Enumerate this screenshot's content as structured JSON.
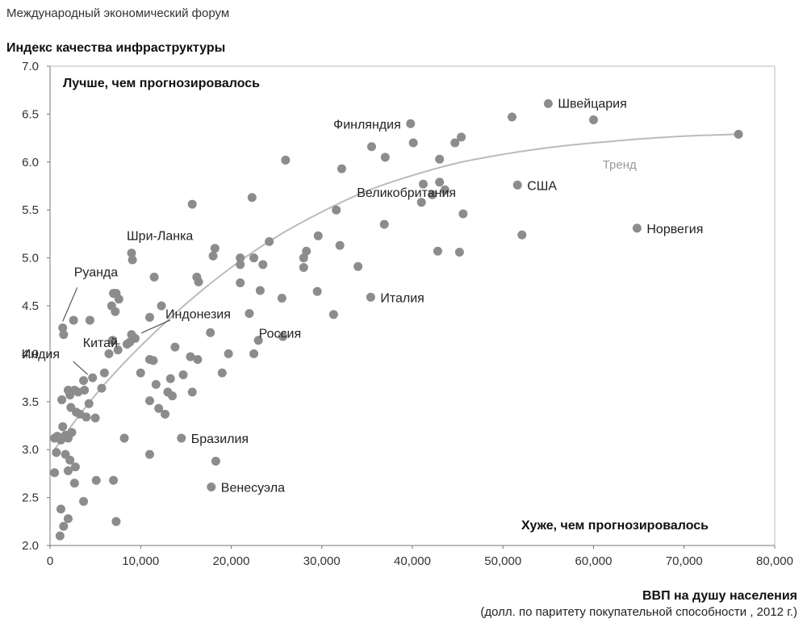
{
  "header": {
    "source": "Международный экономический форум",
    "ylabel": "Индекс качества инфраструктуры",
    "xlabel": "ВВП на душу населения",
    "xsub": "(долл. по паритету покупательной способности , 2012 г.)"
  },
  "chart_data": {
    "type": "scatter",
    "xlim": [
      0,
      80000
    ],
    "ylim": [
      2.0,
      7.0
    ],
    "x_ticks": [
      "0",
      "10,000",
      "20,000",
      "30,000",
      "40,000",
      "50,000",
      "60,000",
      "70,000",
      "80,000"
    ],
    "y_ticks": [
      "2.0",
      "2.5",
      "3.0",
      "3.5",
      "4.0",
      "4.5",
      "5.0",
      "5.5",
      "6.0",
      "6.5",
      "7.0"
    ],
    "grid": false,
    "point_color": "#8c8c8c",
    "trend_color": "#bbbbbb",
    "annotations": {
      "top_left": "Лучше, чем прогнозировалось",
      "bottom_right": "Хуже, чем прогнозировалось",
      "trend": "Тренд"
    },
    "trend": [
      [
        500,
        3.0
      ],
      [
        3000,
        3.33
      ],
      [
        6000,
        3.68
      ],
      [
        10000,
        4.08
      ],
      [
        15000,
        4.52
      ],
      [
        20000,
        4.9
      ],
      [
        25000,
        5.22
      ],
      [
        30000,
        5.48
      ],
      [
        35000,
        5.7
      ],
      [
        40000,
        5.86
      ],
      [
        45000,
        5.99
      ],
      [
        50000,
        6.08
      ],
      [
        55000,
        6.15
      ],
      [
        60000,
        6.2
      ],
      [
        65000,
        6.24
      ],
      [
        70000,
        6.27
      ],
      [
        76000,
        6.29
      ]
    ],
    "labeled_points": [
      {
        "name": "Швейцария",
        "x": 55000,
        "y": 6.61
      },
      {
        "name": "Финляндия",
        "x": 39800,
        "y": 6.4
      },
      {
        "name": "США",
        "x": 51600,
        "y": 5.76
      },
      {
        "name": "Норвегия",
        "x": 64800,
        "y": 5.31
      },
      {
        "name": "Великобритания",
        "x": 36900,
        "y": 5.35
      },
      {
        "name": "Италия",
        "x": 35400,
        "y": 4.59
      },
      {
        "name": "Шри-Ланка",
        "x": 9000,
        "y": 5.05
      },
      {
        "name": "Руанда",
        "x": 1400,
        "y": 4.27
      },
      {
        "name": "Индонезия",
        "x": 9000,
        "y": 4.2
      },
      {
        "name": "Китай",
        "x": 8800,
        "y": 4.12
      },
      {
        "name": "Индия",
        "x": 4700,
        "y": 3.75
      },
      {
        "name": "Россия",
        "x": 17700,
        "y": 4.22
      },
      {
        "name": "Бразилия",
        "x": 14500,
        "y": 3.12
      },
      {
        "name": "Венесуэла",
        "x": 17800,
        "y": 2.61
      }
    ],
    "points": [
      [
        60000,
        6.44
      ],
      [
        76000,
        6.29
      ],
      [
        51000,
        6.47
      ],
      [
        40100,
        6.2
      ],
      [
        37000,
        6.05
      ],
      [
        35500,
        6.16
      ],
      [
        45400,
        6.26
      ],
      [
        44700,
        6.2
      ],
      [
        43000,
        6.03
      ],
      [
        26000,
        6.02
      ],
      [
        32200,
        5.93
      ],
      [
        41200,
        5.77
      ],
      [
        42200,
        5.66
      ],
      [
        43000,
        5.79
      ],
      [
        43600,
        5.71
      ],
      [
        41000,
        5.58
      ],
      [
        45600,
        5.46
      ],
      [
        52100,
        5.24
      ],
      [
        22300,
        5.63
      ],
      [
        15700,
        5.56
      ],
      [
        31600,
        5.5
      ],
      [
        29600,
        5.23
      ],
      [
        32000,
        5.13
      ],
      [
        28300,
        5.07
      ],
      [
        28000,
        5.0
      ],
      [
        24200,
        5.17
      ],
      [
        18200,
        5.1
      ],
      [
        18000,
        5.02
      ],
      [
        22500,
        5.0
      ],
      [
        21000,
        5.0
      ],
      [
        21000,
        4.93
      ],
      [
        23500,
        4.93
      ],
      [
        28000,
        4.9
      ],
      [
        34000,
        4.91
      ],
      [
        42800,
        5.07
      ],
      [
        45200,
        5.06
      ],
      [
        9100,
        4.98
      ],
      [
        11500,
        4.8
      ],
      [
        16200,
        4.8
      ],
      [
        16400,
        4.75
      ],
      [
        21000,
        4.74
      ],
      [
        23200,
        4.66
      ],
      [
        29500,
        4.65
      ],
      [
        25600,
        4.58
      ],
      [
        22000,
        4.42
      ],
      [
        31300,
        4.41
      ],
      [
        25700,
        4.18
      ],
      [
        23000,
        4.14
      ],
      [
        22500,
        4.0
      ],
      [
        19700,
        4.0
      ],
      [
        16300,
        3.94
      ],
      [
        15500,
        3.97
      ],
      [
        13800,
        4.07
      ],
      [
        11000,
        4.38
      ],
      [
        12300,
        4.5
      ],
      [
        7000,
        4.63
      ],
      [
        7300,
        4.63
      ],
      [
        7600,
        4.57
      ],
      [
        6800,
        4.5
      ],
      [
        7200,
        4.44
      ],
      [
        4400,
        4.35
      ],
      [
        6900,
        4.14
      ],
      [
        7500,
        4.04
      ],
      [
        6500,
        4.0
      ],
      [
        9400,
        4.16
      ],
      [
        8500,
        4.1
      ],
      [
        11000,
        3.94
      ],
      [
        11400,
        3.93
      ],
      [
        10000,
        3.8
      ],
      [
        14700,
        3.78
      ],
      [
        13300,
        3.74
      ],
      [
        11700,
        3.68
      ],
      [
        19000,
        3.8
      ],
      [
        13000,
        3.6
      ],
      [
        13500,
        3.56
      ],
      [
        15700,
        3.6
      ],
      [
        11000,
        3.51
      ],
      [
        12000,
        3.43
      ],
      [
        12700,
        3.37
      ],
      [
        8200,
        3.12
      ],
      [
        11000,
        2.95
      ],
      [
        18300,
        2.88
      ],
      [
        7000,
        2.68
      ],
      [
        7300,
        2.25
      ],
      [
        5000,
        3.33
      ],
      [
        4000,
        3.34
      ],
      [
        4300,
        3.48
      ],
      [
        3800,
        3.62
      ],
      [
        5700,
        3.64
      ],
      [
        6000,
        3.8
      ],
      [
        3700,
        3.72
      ],
      [
        3100,
        3.6
      ],
      [
        2700,
        3.62
      ],
      [
        2200,
        3.57
      ],
      [
        2000,
        3.62
      ],
      [
        1300,
        3.52
      ],
      [
        2300,
        3.44
      ],
      [
        2900,
        3.39
      ],
      [
        3300,
        3.37
      ],
      [
        2400,
        3.18
      ],
      [
        2000,
        3.12
      ],
      [
        1700,
        3.15
      ],
      [
        1200,
        3.1
      ],
      [
        800,
        3.14
      ],
      [
        1400,
        3.24
      ],
      [
        500,
        3.12
      ],
      [
        700,
        2.97
      ],
      [
        1700,
        2.95
      ],
      [
        2200,
        2.89
      ],
      [
        2800,
        2.82
      ],
      [
        2000,
        2.78
      ],
      [
        500,
        2.76
      ],
      [
        2700,
        2.65
      ],
      [
        5100,
        2.68
      ],
      [
        3700,
        2.46
      ],
      [
        1200,
        2.38
      ],
      [
        2000,
        2.28
      ],
      [
        1500,
        2.2
      ],
      [
        1100,
        2.1
      ],
      [
        1500,
        4.2
      ],
      [
        2600,
        4.35
      ]
    ]
  }
}
